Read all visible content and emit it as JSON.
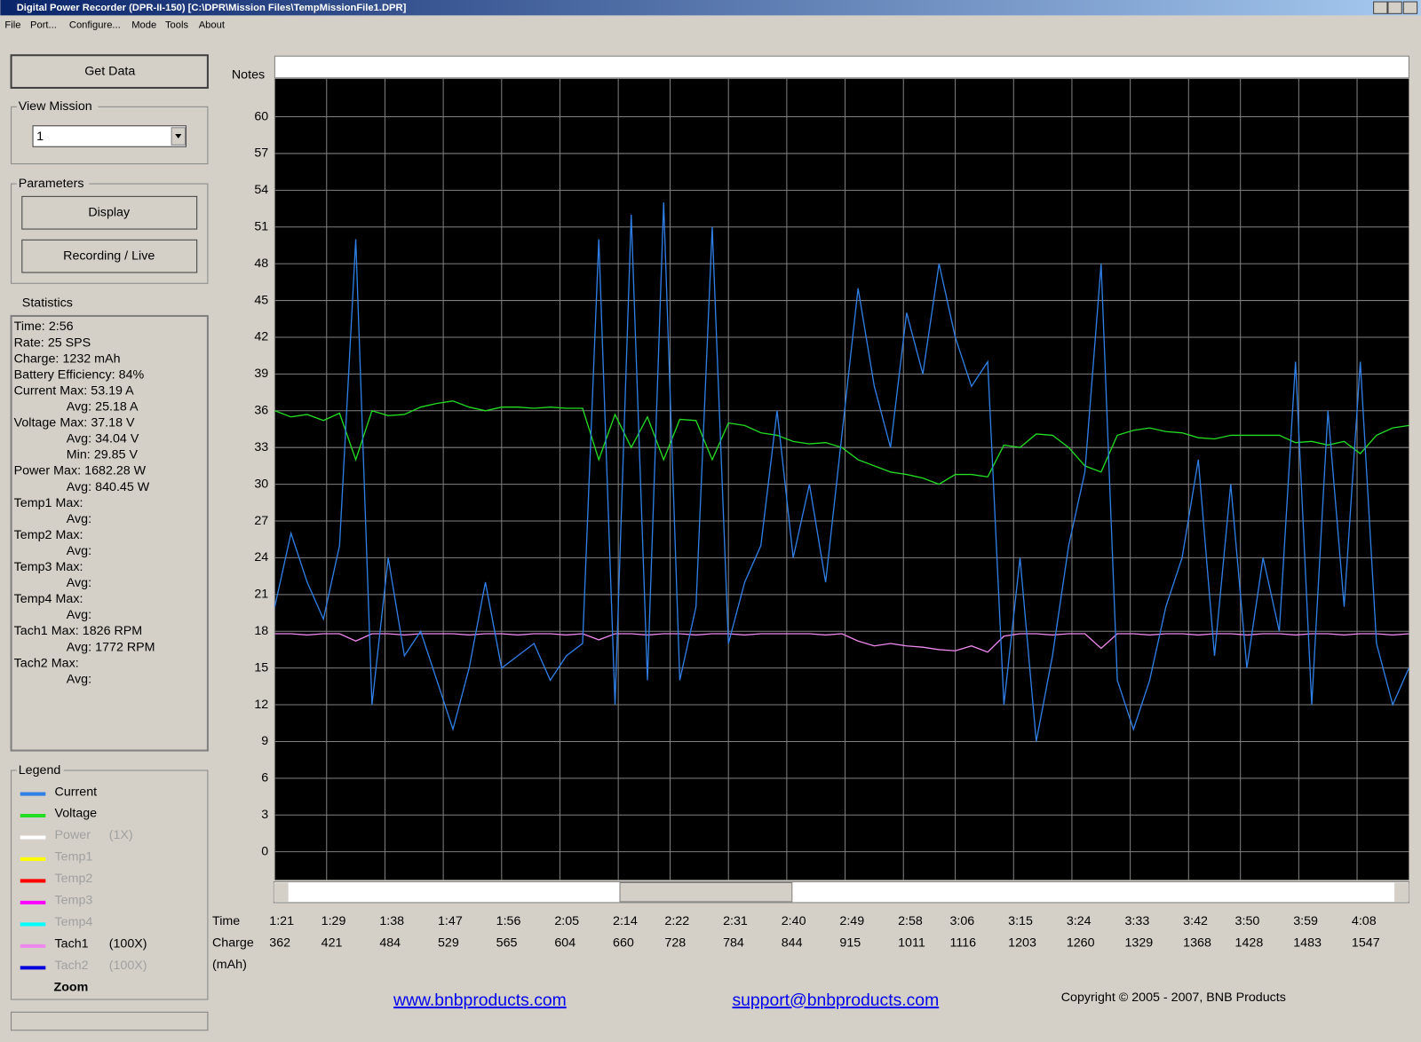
{
  "window": {
    "title": "Digital Power Recorder (DPR-II-150) [C:\\DPR\\Mission Files\\TempMissionFile1.DPR]"
  },
  "menu": [
    "File",
    "Port...",
    "Configure...",
    "Mode",
    "Tools",
    "About"
  ],
  "sidebar": {
    "get_data": "Get Data",
    "view_mission": {
      "label": "View Mission",
      "value": "1"
    },
    "parameters": {
      "label": "Parameters",
      "buttons": [
        "Display",
        "Recording / Live"
      ]
    },
    "statistics": {
      "label": "Statistics",
      "groups": [
        {
          "rows": [
            {
              "key": "Time:",
              "value": "2:56"
            }
          ]
        },
        {
          "rows": [
            {
              "key": "Rate:",
              "value": "25 SPS"
            }
          ]
        },
        {
          "rows": [
            {
              "key": "Charge:",
              "value": "1232 mAh"
            }
          ]
        },
        {
          "rows": [
            {
              "key": "Battery Efficiency:",
              "value": "84%"
            }
          ]
        },
        {
          "label": "Current",
          "rows": [
            {
              "key": "Max:",
              "value": "53.19 A"
            },
            {
              "key": "Avg:",
              "value": "25.18 A"
            }
          ]
        },
        {
          "label": "Voltage",
          "rows": [
            {
              "key": "Max:",
              "value": "37.18 V"
            },
            {
              "key": "Avg:",
              "value": "34.04 V"
            },
            {
              "key": "Min:",
              "value": "29.85 V"
            }
          ]
        },
        {
          "label": "Power",
          "rows": [
            {
              "key": "Max:",
              "value": "1682.28 W"
            },
            {
              "key": "Avg:",
              "value": "840.45 W"
            }
          ]
        },
        {
          "label": "Temp1",
          "rows": [
            {
              "key": "Max:"
            },
            {
              "key": "Avg:"
            }
          ]
        },
        {
          "label": "Temp2",
          "rows": [
            {
              "key": "Max:"
            },
            {
              "key": "Avg:"
            }
          ]
        },
        {
          "label": "Temp3",
          "rows": [
            {
              "key": "Max:"
            },
            {
              "key": "Avg:"
            }
          ]
        },
        {
          "label": "Temp4",
          "rows": [
            {
              "key": "Max:"
            },
            {
              "key": "Avg:"
            }
          ]
        },
        {
          "label": "Tach1",
          "rows": [
            {
              "key": "Max:",
              "value": "1826 RPM"
            },
            {
              "key": "Avg:",
              "value": "1772 RPM"
            }
          ]
        },
        {
          "label": "Tach2",
          "rows": [
            {
              "key": "Max:"
            },
            {
              "key": "Avg:"
            }
          ]
        }
      ]
    },
    "legend": {
      "label": "Legend",
      "zoom": "Zoom"
    }
  },
  "notes_label": "Notes",
  "footer": {
    "links": [
      "www.bnbproducts.com",
      "support@bnbproducts.com"
    ],
    "copyright": "Copyright © 2005 - 2007, BNB Products"
  },
  "chart_data": {
    "type": "line",
    "grid": true,
    "x_label": "Time",
    "x2_label": "Charge",
    "x2_unit": "(mAh)",
    "xlim": [
      81,
      256
    ],
    "ylim": [
      -2.3,
      63.1
    ],
    "yticks": [
      0,
      3,
      6,
      9,
      12,
      15,
      18,
      21,
      24,
      27,
      30,
      33,
      36,
      39,
      42,
      45,
      48,
      51,
      54,
      57,
      60
    ],
    "xticks": [
      {
        "value": 81,
        "label": "1:21"
      },
      {
        "value": 89,
        "label": "1:29"
      },
      {
        "value": 98,
        "label": "1:38"
      },
      {
        "value": 107,
        "label": "1:47"
      },
      {
        "value": 116,
        "label": "1:56"
      },
      {
        "value": 125,
        "label": "2:05"
      },
      {
        "value": 134,
        "label": "2:14"
      },
      {
        "value": 142,
        "label": "2:22"
      },
      {
        "value": 151,
        "label": "2:31"
      },
      {
        "value": 160,
        "label": "2:40"
      },
      {
        "value": 169,
        "label": "2:49"
      },
      {
        "value": 178,
        "label": "2:58"
      },
      {
        "value": 186,
        "label": "3:06"
      },
      {
        "value": 195,
        "label": "3:15"
      },
      {
        "value": 204,
        "label": "3:24"
      },
      {
        "value": 213,
        "label": "3:33"
      },
      {
        "value": 222,
        "label": "3:42"
      },
      {
        "value": 230,
        "label": "3:50"
      },
      {
        "value": 239,
        "label": "3:59"
      },
      {
        "value": 248,
        "label": "4:08"
      }
    ],
    "charge_ticks": [
      362,
      421,
      484,
      529,
      565,
      604,
      660,
      728,
      784,
      844,
      915,
      1011,
      1116,
      1203,
      1260,
      1329,
      1368,
      1428,
      1483,
      1547
    ],
    "x": [
      81,
      83.5,
      86,
      88.5,
      91,
      93.5,
      96,
      98.5,
      101,
      103.5,
      106,
      108.5,
      111,
      113.5,
      116,
      118.5,
      121,
      123.5,
      126,
      128.5,
      131,
      133.5,
      136,
      138.5,
      141,
      143.5,
      146,
      148.5,
      151,
      153.5,
      156,
      158.5,
      161,
      163.5,
      166,
      168.5,
      171,
      173.5,
      176,
      178.5,
      181,
      183.5,
      186,
      188.5,
      191,
      193.5,
      196,
      198.5,
      201,
      203.5,
      206,
      208.5,
      211,
      213.5,
      216,
      218.5,
      221,
      223.5,
      226,
      228.5,
      231,
      233.5,
      236,
      238.5,
      241,
      243.5,
      246,
      248.5,
      251,
      253.5,
      256
    ],
    "series": [
      {
        "name": "Current",
        "color": "#2f7fe6",
        "enabled": true,
        "values": [
          20,
          26,
          22,
          19,
          25,
          50,
          12,
          24,
          16,
          18,
          14,
          10,
          15,
          22,
          15,
          16,
          17,
          14,
          16,
          17,
          50,
          12,
          52,
          14,
          53,
          14,
          20,
          51,
          17,
          22,
          25,
          36,
          24,
          30,
          22,
          34,
          46,
          38,
          33,
          44,
          39,
          48,
          42,
          38,
          40,
          12,
          24,
          9,
          16,
          25,
          31,
          48,
          14,
          10,
          14,
          20,
          24,
          32,
          16,
          30,
          15,
          24,
          18,
          40,
          12,
          36,
          20,
          40,
          17,
          12,
          15
        ]
      },
      {
        "name": "Voltage",
        "color": "#22dd22",
        "enabled": true,
        "values": [
          36,
          35.5,
          35.7,
          35.2,
          35.8,
          32,
          36,
          35.6,
          35.7,
          36.3,
          36.6,
          36.8,
          36.3,
          36,
          36.3,
          36.3,
          36.2,
          36.3,
          36.2,
          36.2,
          32,
          35.7,
          33,
          35.5,
          32,
          35.3,
          35.2,
          32,
          35,
          34.8,
          34.2,
          34,
          33.5,
          33.3,
          33.4,
          33,
          32,
          31.5,
          31,
          30.8,
          30.5,
          30,
          30.8,
          30.8,
          30.6,
          33.2,
          33,
          34.1,
          34,
          33,
          31.5,
          31,
          34,
          34.4,
          34.6,
          34.3,
          34.2,
          33.8,
          33.7,
          34,
          34,
          34,
          34,
          33.4,
          33.5,
          33.2,
          33.5,
          32.5,
          34,
          34.6,
          34.8
        ]
      },
      {
        "name": "Power",
        "color": "#ffffff",
        "enabled": false,
        "scale": "(1X)"
      },
      {
        "name": "Temp1",
        "color": "#ffff00",
        "enabled": false
      },
      {
        "name": "Temp2",
        "color": "#ff0000",
        "enabled": false
      },
      {
        "name": "Temp3",
        "color": "#ff00ff",
        "enabled": false
      },
      {
        "name": "Temp4",
        "color": "#00ffff",
        "enabled": false
      },
      {
        "name": "Tach1",
        "color": "#ee88ee",
        "enabled": true,
        "scale": "(100X)",
        "values": [
          17.8,
          17.8,
          17.7,
          17.8,
          17.8,
          17.2,
          17.8,
          17.8,
          17.7,
          17.8,
          17.8,
          17.8,
          17.7,
          17.8,
          17.8,
          17.7,
          17.8,
          17.8,
          17.7,
          17.8,
          17.3,
          17.8,
          17.8,
          17.7,
          17.8,
          17.8,
          17.7,
          17.8,
          17.8,
          17.7,
          17.8,
          17.8,
          17.8,
          17.8,
          17.7,
          17.8,
          17.2,
          16.8,
          17,
          16.8,
          16.7,
          16.5,
          16.4,
          16.8,
          16.3,
          17.6,
          17.8,
          17.8,
          17.7,
          17.8,
          17.8,
          16.6,
          17.8,
          17.8,
          17.7,
          17.8,
          17.8,
          17.7,
          17.8,
          17.8,
          17.7,
          17.8,
          17.8,
          17.7,
          17.8,
          17.8,
          17.7,
          17.8,
          17.8,
          17.7,
          17.8
        ]
      },
      {
        "name": "Tach2",
        "color": "#0000dd",
        "enabled": false,
        "scale": "(100X)"
      }
    ]
  }
}
